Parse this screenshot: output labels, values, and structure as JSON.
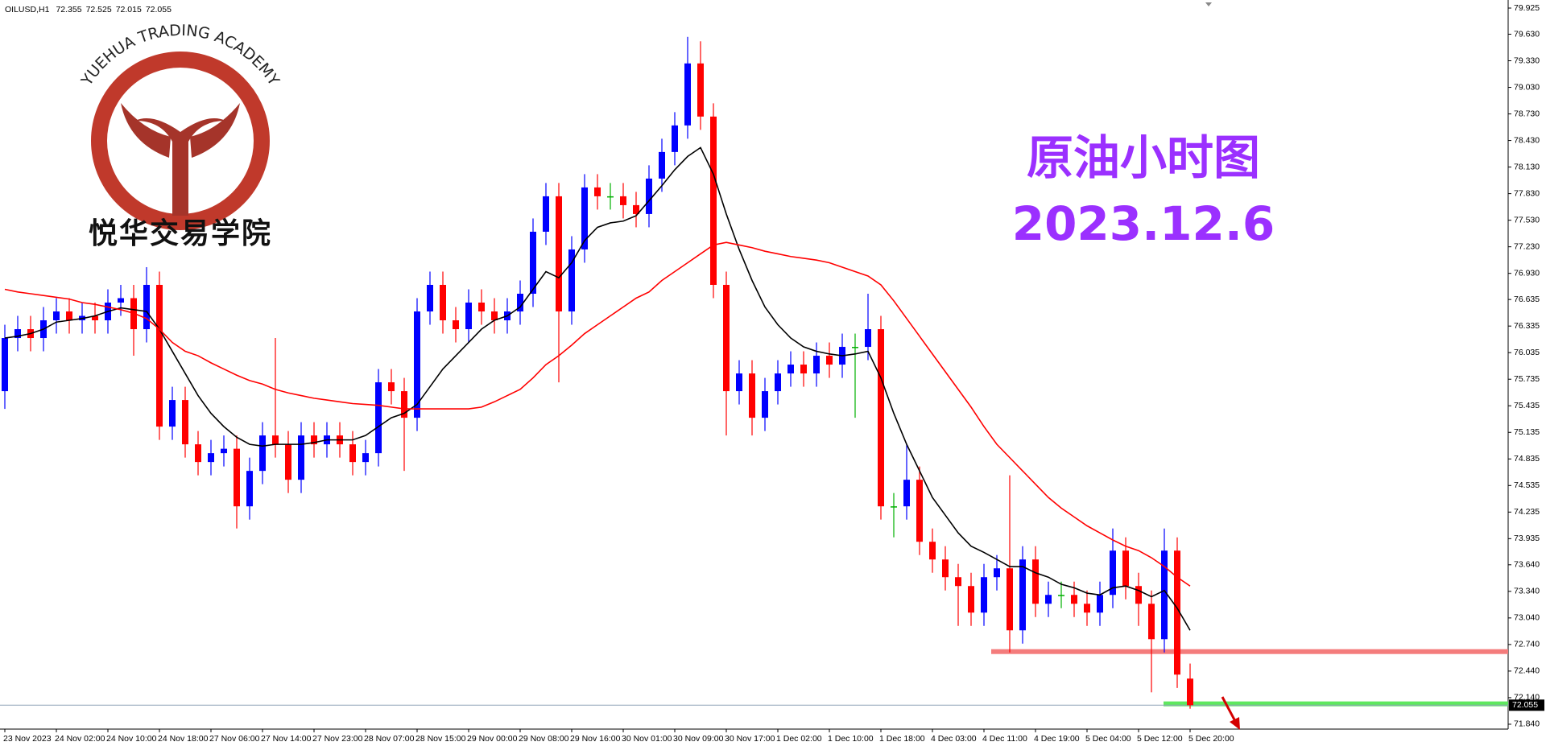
{
  "chart_data": {
    "type": "candlestick",
    "symbol": "OILUSD,H1",
    "title": "原油小时图",
    "subtitle": "2023.12.6",
    "watermark_arc": "YUEHUA TRADING ACADEMY",
    "watermark_name": "悦华交易学院",
    "categories": [
      "23 Nov 2023",
      null,
      null,
      null,
      "24 Nov 02:00",
      null,
      null,
      null,
      "24 Nov 10:00",
      null,
      null,
      null,
      "24 Nov 18:00",
      null,
      null,
      null,
      "27 Nov 06:00",
      null,
      null,
      null,
      "27 Nov 14:00",
      null,
      null,
      null,
      "27 Nov 23:00",
      null,
      null,
      null,
      "28 Nov 07:00",
      null,
      null,
      null,
      "28 Nov 15:00",
      null,
      null,
      null,
      "29 Nov 00:00",
      null,
      null,
      null,
      "29 Nov 08:00",
      null,
      null,
      null,
      "29 Nov 16:00",
      null,
      null,
      null,
      "30 Nov 01:00",
      null,
      null,
      null,
      "30 Nov 09:00",
      null,
      null,
      null,
      "30 Nov 17:00",
      null,
      null,
      null,
      "1 Dec 02:00",
      null,
      null,
      null,
      "1 Dec 10:00",
      null,
      null,
      null,
      "1 Dec 18:00",
      null,
      null,
      null,
      "4 Dec 03:00",
      null,
      null,
      null,
      "4 Dec 11:00",
      null,
      null,
      null,
      "4 Dec 19:00",
      null,
      null,
      null,
      "5 Dec 04:00",
      null,
      null,
      null,
      "5 Dec 12:00",
      null,
      null,
      null,
      "5 Dec 20:00"
    ],
    "open": [
      75.6,
      76.2,
      76.3,
      76.2,
      76.4,
      76.5,
      76.4,
      76.45,
      76.4,
      76.6,
      76.65,
      76.3,
      76.8,
      75.2,
      75.5,
      75,
      74.8,
      74.9,
      74.95,
      74.3,
      74.7,
      75.1,
      75,
      74.6,
      75.1,
      75,
      75.1,
      75,
      74.8,
      74.9,
      75.7,
      75.6,
      75.3,
      76.5,
      76.8,
      76.4,
      76.3,
      76.6,
      76.5,
      76.4,
      76.5,
      76.7,
      77.4,
      77.8,
      76.5,
      77.2,
      77.9,
      77.8,
      77.8,
      77.7,
      77.6,
      78,
      78.3,
      78.6,
      79.3,
      78.7,
      76.8,
      75.6,
      75.8,
      75.3,
      75.6,
      75.8,
      75.9,
      75.8,
      76,
      75.9,
      76.1,
      76.1,
      76.3,
      74.3,
      74.3,
      74.6,
      73.9,
      73.7,
      73.5,
      73.4,
      73.1,
      73.5,
      73.6,
      72.9,
      73.7,
      73.2,
      73.3,
      73.3,
      73.2,
      73.1,
      73.3,
      73.8,
      73.4,
      73.2,
      72.8,
      73.8,
      72.355
    ],
    "high": [
      76.35,
      76.45,
      76.45,
      76.55,
      76.65,
      76.65,
      76.6,
      76.6,
      76.75,
      76.8,
      76.8,
      77,
      76.95,
      75.65,
      75.65,
      75.15,
      75.05,
      75.1,
      75.1,
      74.85,
      75.25,
      76.2,
      75.15,
      75.25,
      75.25,
      75.25,
      75.25,
      75.15,
      75.05,
      75.85,
      75.85,
      75.75,
      76.65,
      76.95,
      76.95,
      76.55,
      76.75,
      76.75,
      76.65,
      76.65,
      76.85,
      77.55,
      77.95,
      77.95,
      77.35,
      78.05,
      78.05,
      77.95,
      77.95,
      77.85,
      78.15,
      78.45,
      78.75,
      79.6,
      79.55,
      78.85,
      76.95,
      75.95,
      75.95,
      75.75,
      75.95,
      76.05,
      76.05,
      76.15,
      76.15,
      76.25,
      76.25,
      76.7,
      76.45,
      74.45,
      75,
      74.75,
      74.05,
      73.85,
      73.65,
      73.55,
      73.65,
      73.75,
      74.65,
      73.85,
      73.85,
      73.45,
      73.45,
      73.45,
      73.35,
      73.45,
      74.05,
      73.95,
      73.55,
      73.35,
      74.05,
      73.95,
      72.525
    ],
    "low": [
      75.4,
      76.05,
      76.05,
      76.05,
      76.25,
      76.25,
      76.25,
      76.25,
      76.25,
      76.45,
      76,
      76.15,
      75.05,
      75.05,
      74.85,
      74.65,
      74.65,
      74.75,
      74.05,
      74.15,
      74.55,
      74.85,
      74.45,
      74.45,
      74.85,
      74.85,
      74.85,
      74.65,
      74.65,
      74.75,
      75.45,
      74.7,
      75.15,
      76.35,
      76.25,
      76.15,
      76.15,
      76.35,
      76.25,
      76.25,
      76.35,
      76.55,
      77.25,
      75.7,
      76.35,
      77.05,
      77.65,
      77.65,
      77.55,
      77.45,
      77.45,
      77.85,
      78.15,
      78.45,
      78.55,
      76.65,
      75.1,
      75.45,
      75.1,
      75.15,
      75.45,
      75.65,
      75.65,
      75.65,
      75.75,
      75.75,
      75.3,
      75.95,
      74.15,
      73.95,
      74.15,
      73.75,
      73.55,
      73.35,
      72.95,
      72.95,
      72.95,
      73.35,
      72.65,
      72.75,
      73.05,
      73.05,
      73.15,
      73.05,
      72.95,
      72.95,
      73.15,
      73.25,
      72.95,
      72.2,
      72.65,
      72.25,
      72.015
    ],
    "close": [
      76.2,
      76.3,
      76.2,
      76.4,
      76.5,
      76.4,
      76.45,
      76.4,
      76.6,
      76.65,
      76.3,
      76.8,
      75.2,
      75.5,
      75,
      74.8,
      74.9,
      74.95,
      74.3,
      74.7,
      75.1,
      75,
      74.6,
      75.1,
      75,
      75.1,
      75,
      74.8,
      74.9,
      75.7,
      75.6,
      75.3,
      76.5,
      76.8,
      76.4,
      76.3,
      76.6,
      76.5,
      76.4,
      76.5,
      76.7,
      77.4,
      77.8,
      76.5,
      77.2,
      77.9,
      77.8,
      77.8,
      77.7,
      77.6,
      78,
      78.3,
      78.6,
      79.3,
      78.7,
      76.8,
      75.6,
      75.8,
      75.3,
      75.6,
      75.8,
      75.9,
      75.8,
      76,
      75.9,
      76.1,
      76.1,
      76.3,
      74.3,
      74.3,
      74.6,
      73.9,
      73.7,
      73.5,
      73.4,
      73.1,
      73.5,
      73.6,
      72.9,
      73.7,
      73.2,
      73.3,
      73.3,
      73.2,
      73.1,
      73.3,
      73.8,
      73.4,
      73.2,
      72.8,
      73.8,
      72.4,
      72.055
    ],
    "up_color": "#0000ff",
    "down_color": "#ff0000",
    "doji_color": "#00b000",
    "lines": [
      {
        "color": "#000000",
        "values": [
          76.2,
          76.22,
          76.25,
          76.3,
          76.38,
          76.4,
          76.42,
          76.45,
          76.5,
          76.54,
          76.52,
          76.5,
          76.3,
          76.05,
          75.8,
          75.55,
          75.35,
          75.2,
          75.08,
          75,
          74.98,
          75,
          75,
          75,
          75.02,
          75.05,
          75.05,
          75.05,
          75.1,
          75.2,
          75.3,
          75.35,
          75.45,
          75.65,
          75.85,
          76,
          76.15,
          76.3,
          76.4,
          76.45,
          76.55,
          76.75,
          76.95,
          76.88,
          77.05,
          77.3,
          77.45,
          77.5,
          77.52,
          77.58,
          77.75,
          77.92,
          78.1,
          78.25,
          78.35,
          78.05,
          77.6,
          77.2,
          76.85,
          76.55,
          76.35,
          76.2,
          76.1,
          76.05,
          76.02,
          76,
          76.02,
          76.05,
          75.75,
          75.35,
          75,
          74.7,
          74.4,
          74.2,
          74,
          73.85,
          73.78,
          73.7,
          73.62,
          73.62,
          73.55,
          73.5,
          73.42,
          73.38,
          73.32,
          73.3,
          73.38,
          73.4,
          73.35,
          73.28,
          73.35,
          73.15,
          72.9
        ]
      },
      {
        "color": "#ff0000",
        "values": [
          76.75,
          76.72,
          76.7,
          76.68,
          76.66,
          76.64,
          76.6,
          76.58,
          76.55,
          76.52,
          76.48,
          76.42,
          76.3,
          76.15,
          76.05,
          76,
          75.92,
          75.85,
          75.78,
          75.72,
          75.68,
          75.62,
          75.58,
          75.55,
          75.52,
          75.5,
          75.48,
          75.46,
          75.45,
          75.44,
          75.42,
          75.4,
          75.4,
          75.4,
          75.4,
          75.4,
          75.4,
          75.42,
          75.48,
          75.55,
          75.62,
          75.75,
          75.9,
          76,
          76.12,
          76.25,
          76.35,
          76.45,
          76.55,
          76.65,
          76.72,
          76.85,
          76.95,
          77.05,
          77.15,
          77.25,
          77.28,
          77.25,
          77.22,
          77.18,
          77.15,
          77.12,
          77.1,
          77.08,
          77.05,
          77,
          76.95,
          76.9,
          76.8,
          76.62,
          76.42,
          76.22,
          76.02,
          75.82,
          75.62,
          75.42,
          75.2,
          75,
          74.85,
          74.7,
          74.55,
          74.4,
          74.28,
          74.18,
          74.08,
          74,
          73.92,
          73.85,
          73.8,
          73.72,
          73.62,
          73.5,
          73.4
        ]
      }
    ],
    "levels": [
      {
        "value": 72.66,
        "color": "#f47c7c"
      },
      {
        "value": 72.07,
        "color": "#5ee85e"
      }
    ],
    "ylim": [
      71.785,
      80.016
    ],
    "yticks": [
      79.925,
      {
        "value": 79.63,
        "label": "79.630"
      },
      {
        "value": 79.33,
        "label": "79.330"
      },
      {
        "value": 79.03,
        "label": "79.030"
      },
      {
        "value": 78.73,
        "label": "78.730"
      },
      {
        "value": 78.43,
        "label": "78.430"
      },
      {
        "value": 78.13,
        "label": "78.130"
      },
      {
        "value": 77.83,
        "label": "77.830"
      },
      {
        "value": 77.53,
        "label": "77.530"
      },
      {
        "value": 77.23,
        "label": "77.230"
      },
      {
        "value": 76.93,
        "label": "76.930"
      },
      76.635,
      76.335,
      76.035,
      75.735,
      75.435,
      75.135,
      74.835,
      74.535,
      74.235,
      73.935,
      {
        "value": 73.64,
        "label": "73.640"
      },
      {
        "value": 73.34,
        "label": "73.340"
      },
      {
        "value": 73.04,
        "label": "73.040"
      },
      {
        "value": 72.74,
        "label": "72.740"
      },
      {
        "value": 72.44,
        "label": "72.440"
      },
      {
        "value": 72.14,
        "label": "72.140"
      },
      {
        "value": 71.84,
        "label": "71.840"
      }
    ],
    "grid": false
  }
}
